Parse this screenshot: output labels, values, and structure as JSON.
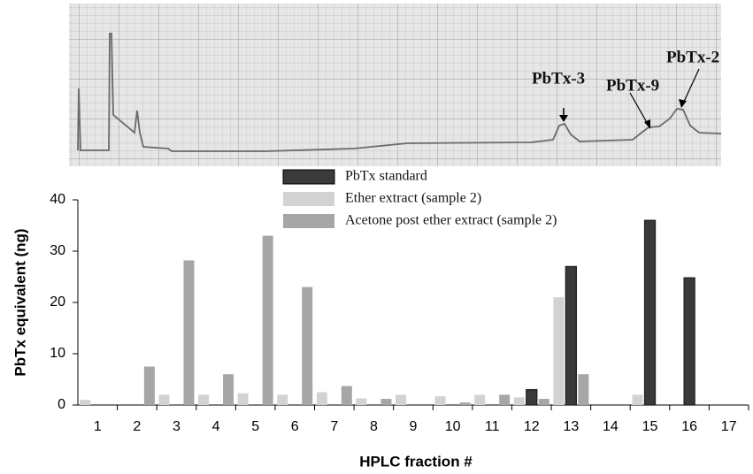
{
  "chart_data": {
    "type": "bar",
    "annotations": [
      "PbTx-3",
      "PbTx-9",
      "PbTx-2"
    ],
    "xlabel": "HPLC fraction #",
    "ylabel": "PbTx equivalent (ng)",
    "categories": [
      "1",
      "2",
      "3",
      "4",
      "5",
      "6",
      "7",
      "8",
      "9",
      "10",
      "11",
      "12",
      "13",
      "14",
      "15",
      "16",
      "17"
    ],
    "series": [
      {
        "name": "PbTx standard",
        "color": "#3a3a3a",
        "values": [
          0,
          0,
          0,
          0,
          0,
          0,
          0,
          0,
          0,
          0,
          0,
          3,
          27,
          0,
          36,
          24.8,
          0
        ]
      },
      {
        "name": "Ether extract (sample 2)",
        "color": "#d2d2d2",
        "values": [
          1,
          0,
          2,
          2,
          2.3,
          2,
          2.5,
          1.3,
          2,
          1.7,
          2,
          1.5,
          21,
          0,
          2,
          0,
          0
        ]
      },
      {
        "name": "Acetone post ether extract (sample 2)",
        "color": "#a6a6a6",
        "values": [
          0,
          7.5,
          28.2,
          6,
          33,
          23,
          3.7,
          1.2,
          0,
          0.5,
          2,
          1.2,
          6,
          0,
          0,
          0,
          0
        ]
      }
    ],
    "ylim": [
      0,
      40
    ],
    "yticks": [
      0,
      10,
      20,
      30,
      40
    ],
    "grid": false
  }
}
